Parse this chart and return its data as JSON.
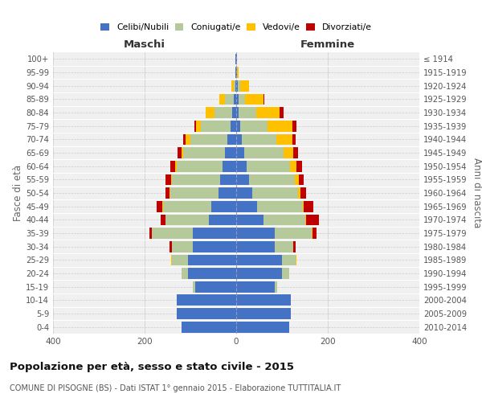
{
  "age_groups": [
    "0-4",
    "5-9",
    "10-14",
    "15-19",
    "20-24",
    "25-29",
    "30-34",
    "35-39",
    "40-44",
    "45-49",
    "50-54",
    "55-59",
    "60-64",
    "65-69",
    "70-74",
    "75-79",
    "80-84",
    "85-89",
    "90-94",
    "95-99",
    "100+"
  ],
  "birth_years": [
    "2010-2014",
    "2005-2009",
    "2000-2004",
    "1995-1999",
    "1990-1994",
    "1985-1989",
    "1980-1984",
    "1975-1979",
    "1970-1974",
    "1965-1969",
    "1960-1964",
    "1955-1959",
    "1950-1954",
    "1945-1949",
    "1940-1944",
    "1935-1939",
    "1930-1934",
    "1925-1929",
    "1920-1924",
    "1915-1919",
    "≤ 1914"
  ],
  "males": {
    "celibi": [
      120,
      130,
      130,
      90,
      105,
      105,
      95,
      95,
      60,
      55,
      38,
      35,
      30,
      25,
      20,
      12,
      8,
      5,
      2,
      1,
      1
    ],
    "coniugati": [
      0,
      0,
      0,
      5,
      15,
      35,
      45,
      90,
      95,
      105,
      105,
      105,
      100,
      90,
      80,
      65,
      40,
      20,
      3,
      0,
      0
    ],
    "vedovi": [
      0,
      0,
      0,
      0,
      0,
      2,
      0,
      0,
      0,
      2,
      2,
      2,
      3,
      5,
      10,
      10,
      18,
      12,
      5,
      1,
      0
    ],
    "divorziati": [
      0,
      0,
      0,
      0,
      0,
      0,
      5,
      5,
      10,
      12,
      10,
      12,
      10,
      8,
      5,
      5,
      0,
      0,
      0,
      0,
      0
    ]
  },
  "females": {
    "nubili": [
      115,
      120,
      120,
      85,
      100,
      100,
      85,
      85,
      60,
      45,
      35,
      28,
      22,
      18,
      12,
      8,
      5,
      5,
      3,
      1,
      1
    ],
    "coniugate": [
      0,
      0,
      0,
      5,
      15,
      30,
      40,
      80,
      90,
      100,
      100,
      100,
      95,
      85,
      75,
      60,
      38,
      15,
      5,
      1,
      0
    ],
    "vedove": [
      0,
      0,
      0,
      0,
      0,
      2,
      0,
      2,
      2,
      3,
      5,
      8,
      15,
      22,
      35,
      55,
      52,
      40,
      20,
      3,
      1
    ],
    "divorziate": [
      0,
      0,
      0,
      0,
      0,
      0,
      5,
      8,
      28,
      20,
      12,
      12,
      12,
      10,
      8,
      8,
      8,
      2,
      0,
      0,
      0
    ]
  },
  "colors": {
    "celibi": "#4472c4",
    "coniugati": "#b5c99a",
    "vedovi": "#ffc000",
    "divorziati": "#c00000"
  },
  "title": "Popolazione per età, sesso e stato civile - 2015",
  "subtitle": "COMUNE DI PISOGNE (BS) - Dati ISTAT 1° gennaio 2015 - Elaborazione TUTTITALIA.IT",
  "xlabel_left": "Maschi",
  "xlabel_right": "Femmine",
  "ylabel_left": "Fasce di età",
  "ylabel_right": "Anni di nascita",
  "xlim": 400,
  "background_color": "#ffffff",
  "plot_bg": "#f0f0f0",
  "grid_color": "#cccccc",
  "legend_labels": [
    "Celibi/Nubili",
    "Coniugati/e",
    "Vedovi/e",
    "Divorziati/e"
  ]
}
